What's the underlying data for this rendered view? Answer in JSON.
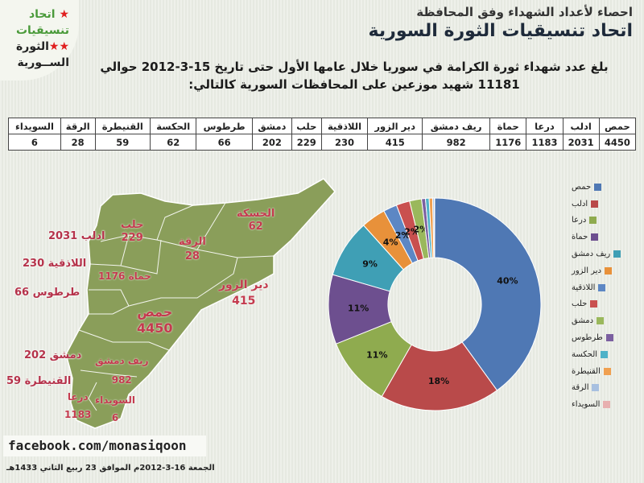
{
  "logo": {
    "line1": "اتحاد",
    "line2": "تنسيقيات",
    "line3": "الثورة",
    "line4": "الســورية",
    "stars": "★",
    "star_color": "#e02020"
  },
  "header": {
    "subtitle": "احصاء لأعداد الشهداء وفق المحافظة",
    "title": "اتحاد تنسيقيات الثورة السورية"
  },
  "intro": {
    "line1": "بلغ عدد شهداء ثورة الكرامة في سوريا خلال عامها الأول حتى تاريخ 15-3-2012 حوالي",
    "line2": "11181 شهيد موزعين على المحافظات السورية كالتالي:"
  },
  "table": {
    "headers": [
      "حمص",
      "ادلب",
      "درعا",
      "حماة",
      "ريف دمشق",
      "دير الزور",
      "اللاذقية",
      "حلب",
      "دمشق",
      "طرطوس",
      "الحكسة",
      "القنيطرة",
      "الرقة",
      "السويداء"
    ],
    "values": [
      "4450",
      "2031",
      "1183",
      "1176",
      "982",
      "415",
      "230",
      "229",
      "202",
      "66",
      "62",
      "59",
      "28",
      "6"
    ]
  },
  "map_labels": [
    {
      "name": "حلب",
      "value": "229"
    },
    {
      "name": "الحسكة",
      "value": "62"
    },
    {
      "name": "ادلب 2031",
      "value": ""
    },
    {
      "name": "الرقة",
      "value": "28"
    },
    {
      "name": "اللاذقية 230",
      "value": ""
    },
    {
      "name": "حماة 1176",
      "value": ""
    },
    {
      "name": "دير الزور",
      "value": "415"
    },
    {
      "name": "طرطوس 66",
      "value": ""
    },
    {
      "name": "حمص",
      "value": "4450"
    },
    {
      "name": "دمشق 202",
      "value": ""
    },
    {
      "name": "ريف دمشق",
      "value": "982"
    },
    {
      "name": "القنيطرة 59",
      "value": ""
    },
    {
      "name": "درعا",
      "value": "1183"
    },
    {
      "name": "السويداء",
      "value": "6"
    }
  ],
  "chart_data": {
    "type": "pie",
    "donut": true,
    "categories": [
      "حمص",
      "ادلب",
      "درعا",
      "حماة",
      "ريف دمشق",
      "دير الزور",
      "اللاذقية",
      "حلب",
      "دمشق",
      "طرطوس",
      "الحكسة",
      "القنيطرة",
      "الرقة",
      "السويداء"
    ],
    "values": [
      4450,
      2031,
      1183,
      1176,
      982,
      415,
      230,
      229,
      202,
      66,
      62,
      59,
      28,
      6
    ],
    "data_labels": [
      "40%",
      "18%",
      "11%",
      "11%",
      "9%",
      "4%",
      "2%",
      "2%",
      "2%",
      "",
      "",
      "",
      "",
      ""
    ],
    "colors": [
      "#4f78b4",
      "#b94a4a",
      "#8fab4f",
      "#6d4f8f",
      "#3f9fb5",
      "#e8913a",
      "#5d87c4",
      "#c9504f",
      "#9ab85c",
      "#7b5fa0",
      "#4fb2c8",
      "#f0a050",
      "#a8c0e0",
      "#e8b0b0"
    ],
    "legend_position": "right"
  },
  "colors": {
    "map_fill": "#8a9e5a",
    "map_stroke": "#ffffff",
    "label_red": "#b5324a"
  },
  "footer": {
    "facebook": "facebook.com/monasiqoon",
    "date": "الجمعة 16-3-2012م الموافق 23 ربيع الثاني 1433هـ"
  }
}
